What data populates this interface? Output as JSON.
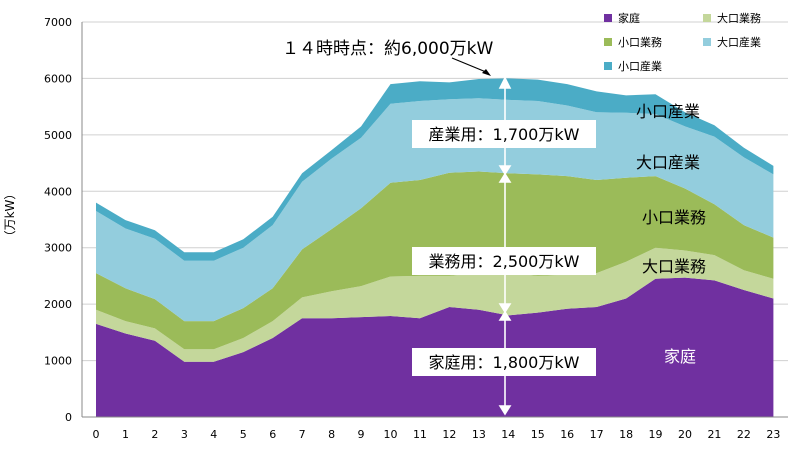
{
  "chart_data": {
    "type": "area",
    "stacked": true,
    "ylabel": "（万kW）",
    "xlabel": "",
    "ylim": [
      0,
      7000
    ],
    "yticks": [
      0,
      1000,
      2000,
      3000,
      4000,
      5000,
      6000,
      7000
    ],
    "x": [
      0,
      1,
      2,
      3,
      4,
      5,
      6,
      7,
      8,
      9,
      10,
      11,
      12,
      13,
      14,
      15,
      16,
      17,
      18,
      19,
      20,
      21,
      22,
      23
    ],
    "grid": true,
    "legend": "top-right",
    "series": [
      {
        "name": "家庭",
        "color": "#7030a0",
        "values": [
          1650,
          1480,
          1350,
          980,
          980,
          1150,
          1400,
          1750,
          1750,
          1770,
          1790,
          1750,
          1950,
          1900,
          1800,
          1850,
          1920,
          1950,
          2100,
          2450,
          2470,
          2420,
          2250,
          2100
        ]
      },
      {
        "name": "大口業務",
        "color": "#c4d79b",
        "values": [
          250,
          220,
          220,
          220,
          220,
          250,
          300,
          370,
          480,
          550,
          700,
          750,
          550,
          650,
          750,
          650,
          600,
          600,
          650,
          550,
          480,
          450,
          350,
          350
        ]
      },
      {
        "name": "小口業務",
        "color": "#9bbb59",
        "values": [
          650,
          580,
          520,
          500,
          500,
          530,
          580,
          850,
          1100,
          1380,
          1660,
          1700,
          1830,
          1800,
          1770,
          1800,
          1750,
          1650,
          1490,
          1270,
          1100,
          900,
          800,
          730
        ]
      },
      {
        "name": "大口産業",
        "color": "#93cddd",
        "values": [
          1100,
          1060,
          1070,
          1070,
          1070,
          1070,
          1120,
          1200,
          1250,
          1250,
          1400,
          1400,
          1300,
          1300,
          1300,
          1300,
          1250,
          1200,
          1150,
          1100,
          1100,
          1200,
          1200,
          1120
        ]
      },
      {
        "name": "小口産業",
        "color": "#4bacc6",
        "values": [
          150,
          150,
          150,
          150,
          150,
          150,
          150,
          150,
          150,
          200,
          350,
          350,
          300,
          340,
          380,
          380,
          380,
          370,
          310,
          350,
          250,
          200,
          170,
          150
        ]
      }
    ]
  },
  "labels": {
    "peak": "１４時時点：約6,000万kW",
    "industrial": "産業用：1,700万kW",
    "business": "業務用：2,500万kW",
    "household": "家庭用：1,800万kW",
    "inside": {
      "s_industry": "小口産業",
      "l_industry": "大口産業",
      "s_business": "小口業務",
      "l_business": "大口業務",
      "household": "家庭"
    }
  }
}
